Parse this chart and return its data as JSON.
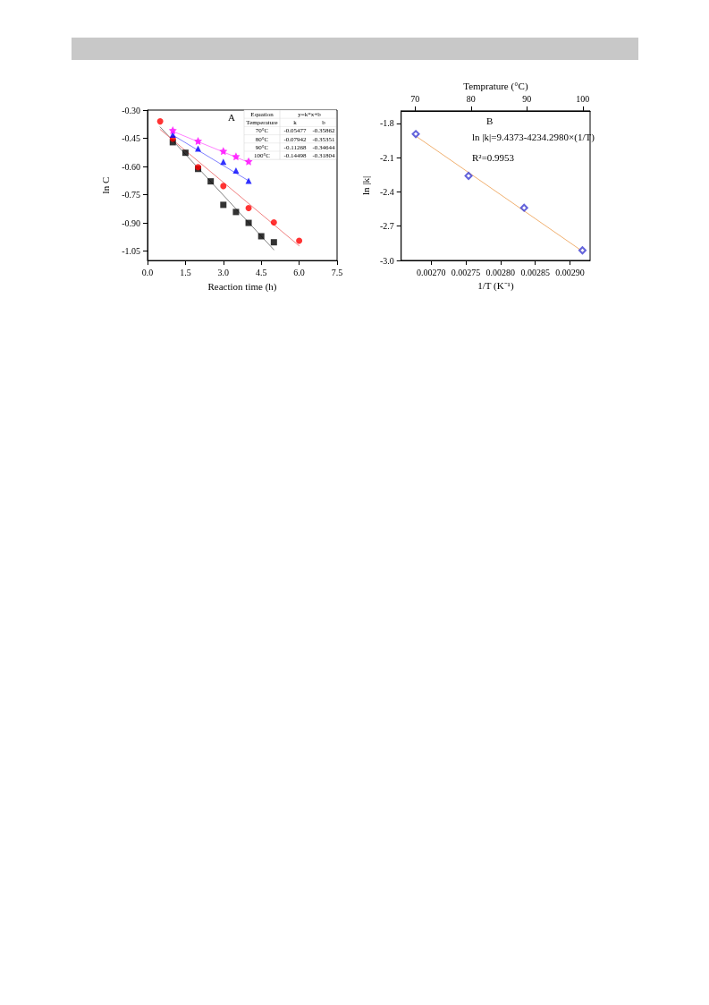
{
  "chart_data": [
    {
      "type": "scatter",
      "xlabel": "Reaction time (h)",
      "ylabel": "ln C",
      "xlim": [
        0,
        7.5
      ],
      "xticks": [
        {
          "value": 0,
          "label": "0.0"
        },
        1.5,
        {
          "value": 3,
          "label": "3.0"
        },
        4.5,
        {
          "value": 6,
          "label": "6.0"
        },
        7.5
      ],
      "ylim": [
        -1.1,
        -0.3
      ],
      "yticks": [
        {
          "value": -1.05,
          "label": "-1.05"
        },
        {
          "value": -0.9,
          "label": "-0.90"
        },
        -0.75,
        {
          "value": -0.6,
          "label": "-0.60"
        },
        -0.45,
        {
          "value": -0.3,
          "label": "-0.30"
        }
      ],
      "grid": false,
      "series": [
        {
          "type": "scatter",
          "marker": "square",
          "color": "#000000",
          "x": [
            1,
            1.5,
            2,
            2.5,
            3,
            3.5,
            4,
            4.5,
            5
          ],
          "values": [
            -0.471,
            -0.527,
            -0.613,
            -0.679,
            -0.804,
            -0.842,
            -0.9,
            -0.971,
            -1.003
          ]
        },
        {
          "type": "scatter",
          "marker": "circle",
          "color": "#ff0000",
          "x": [
            0.5,
            1,
            2,
            3,
            4,
            5,
            6
          ],
          "values": [
            -0.36,
            -0.452,
            -0.603,
            -0.704,
            -0.821,
            -0.897,
            -0.995
          ]
        },
        {
          "type": "scatter",
          "marker": "triangle",
          "color": "#0000ff",
          "x": [
            1,
            2,
            3,
            3.5,
            4
          ],
          "values": [
            -0.431,
            -0.505,
            -0.575,
            -0.621,
            -0.676
          ]
        },
        {
          "type": "scatter",
          "marker": "star",
          "color": "#ff00ff",
          "x": [
            1,
            2,
            3,
            3.5,
            4
          ],
          "values": [
            -0.407,
            -0.464,
            -0.518,
            -0.546,
            -0.573
          ]
        },
        {
          "type": "line",
          "marker": "none",
          "line_style": "solid",
          "color": "#808080",
          "x": [
            0.5,
            5
          ],
          "values": [
            -0.39,
            -1.043
          ]
        },
        {
          "type": "line",
          "marker": "none",
          "line_style": "solid",
          "color": "#f08080",
          "x": [
            0.5,
            6
          ],
          "values": [
            -0.403,
            -1.022
          ]
        },
        {
          "type": "line",
          "marker": "none",
          "line_style": "solid",
          "color": "#8080ff",
          "x": [
            1,
            4
          ],
          "values": [
            -0.433,
            -0.676
          ]
        },
        {
          "type": "line",
          "marker": "none",
          "line_style": "solid",
          "color": "#ff80ff",
          "x": [
            1,
            4
          ],
          "values": [
            -0.413,
            -0.578
          ]
        }
      ],
      "annotations": [
        "A",
        "Equation",
        "y=k*x+b",
        "Temperature",
        "k",
        "b",
        "70°C",
        "-0.05477",
        "-0.35862",
        "80°C",
        "-0.07942",
        "-0.35351",
        "90°C",
        "-0.11268",
        "-0.34644",
        "100°C",
        "-0.14498",
        "-0.31804"
      ]
    },
    {
      "type": "scatter",
      "xlabel": "1/T (K⁻¹)",
      "ylabel": "ln |k|",
      "x2label": "Temprature (°C)",
      "xlim": [
        0.002657,
        0.002929
      ],
      "xticks": [
        {
          "value": 0.0027,
          "label": "0.00270"
        },
        0.00275,
        {
          "value": 0.0028,
          "label": "0.00280"
        },
        0.00285,
        {
          "value": 0.0029,
          "label": "0.00290"
        }
      ],
      "x2lim": [
        67.5,
        101.3
      ],
      "x2ticks": [
        70,
        80,
        90,
        100
      ],
      "ylim": [
        -3.0,
        -1.69
      ],
      "yticks": [
        {
          "value": -3,
          "label": "-3.0"
        },
        -2.7,
        -2.4,
        -2.1,
        -1.8
      ],
      "grid": false,
      "series": [
        {
          "type": "scatter",
          "marker": "diamond",
          "color": "#3c3cd2",
          "x": [
            0.002678,
            0.002754,
            0.002834,
            0.002918
          ],
          "values": [
            -1.893,
            -2.259,
            -2.539,
            -2.912
          ]
        },
        {
          "type": "line",
          "marker": "none",
          "line_style": "solid",
          "color": "#f0b070",
          "x": [
            0.002678,
            0.002918
          ],
          "values": [
            -1.91,
            -2.92
          ]
        }
      ],
      "annotations": [
        "B",
        "ln |k|=9.4373-4234.2980×(1/T)",
        "R²=0.9953"
      ]
    }
  ]
}
